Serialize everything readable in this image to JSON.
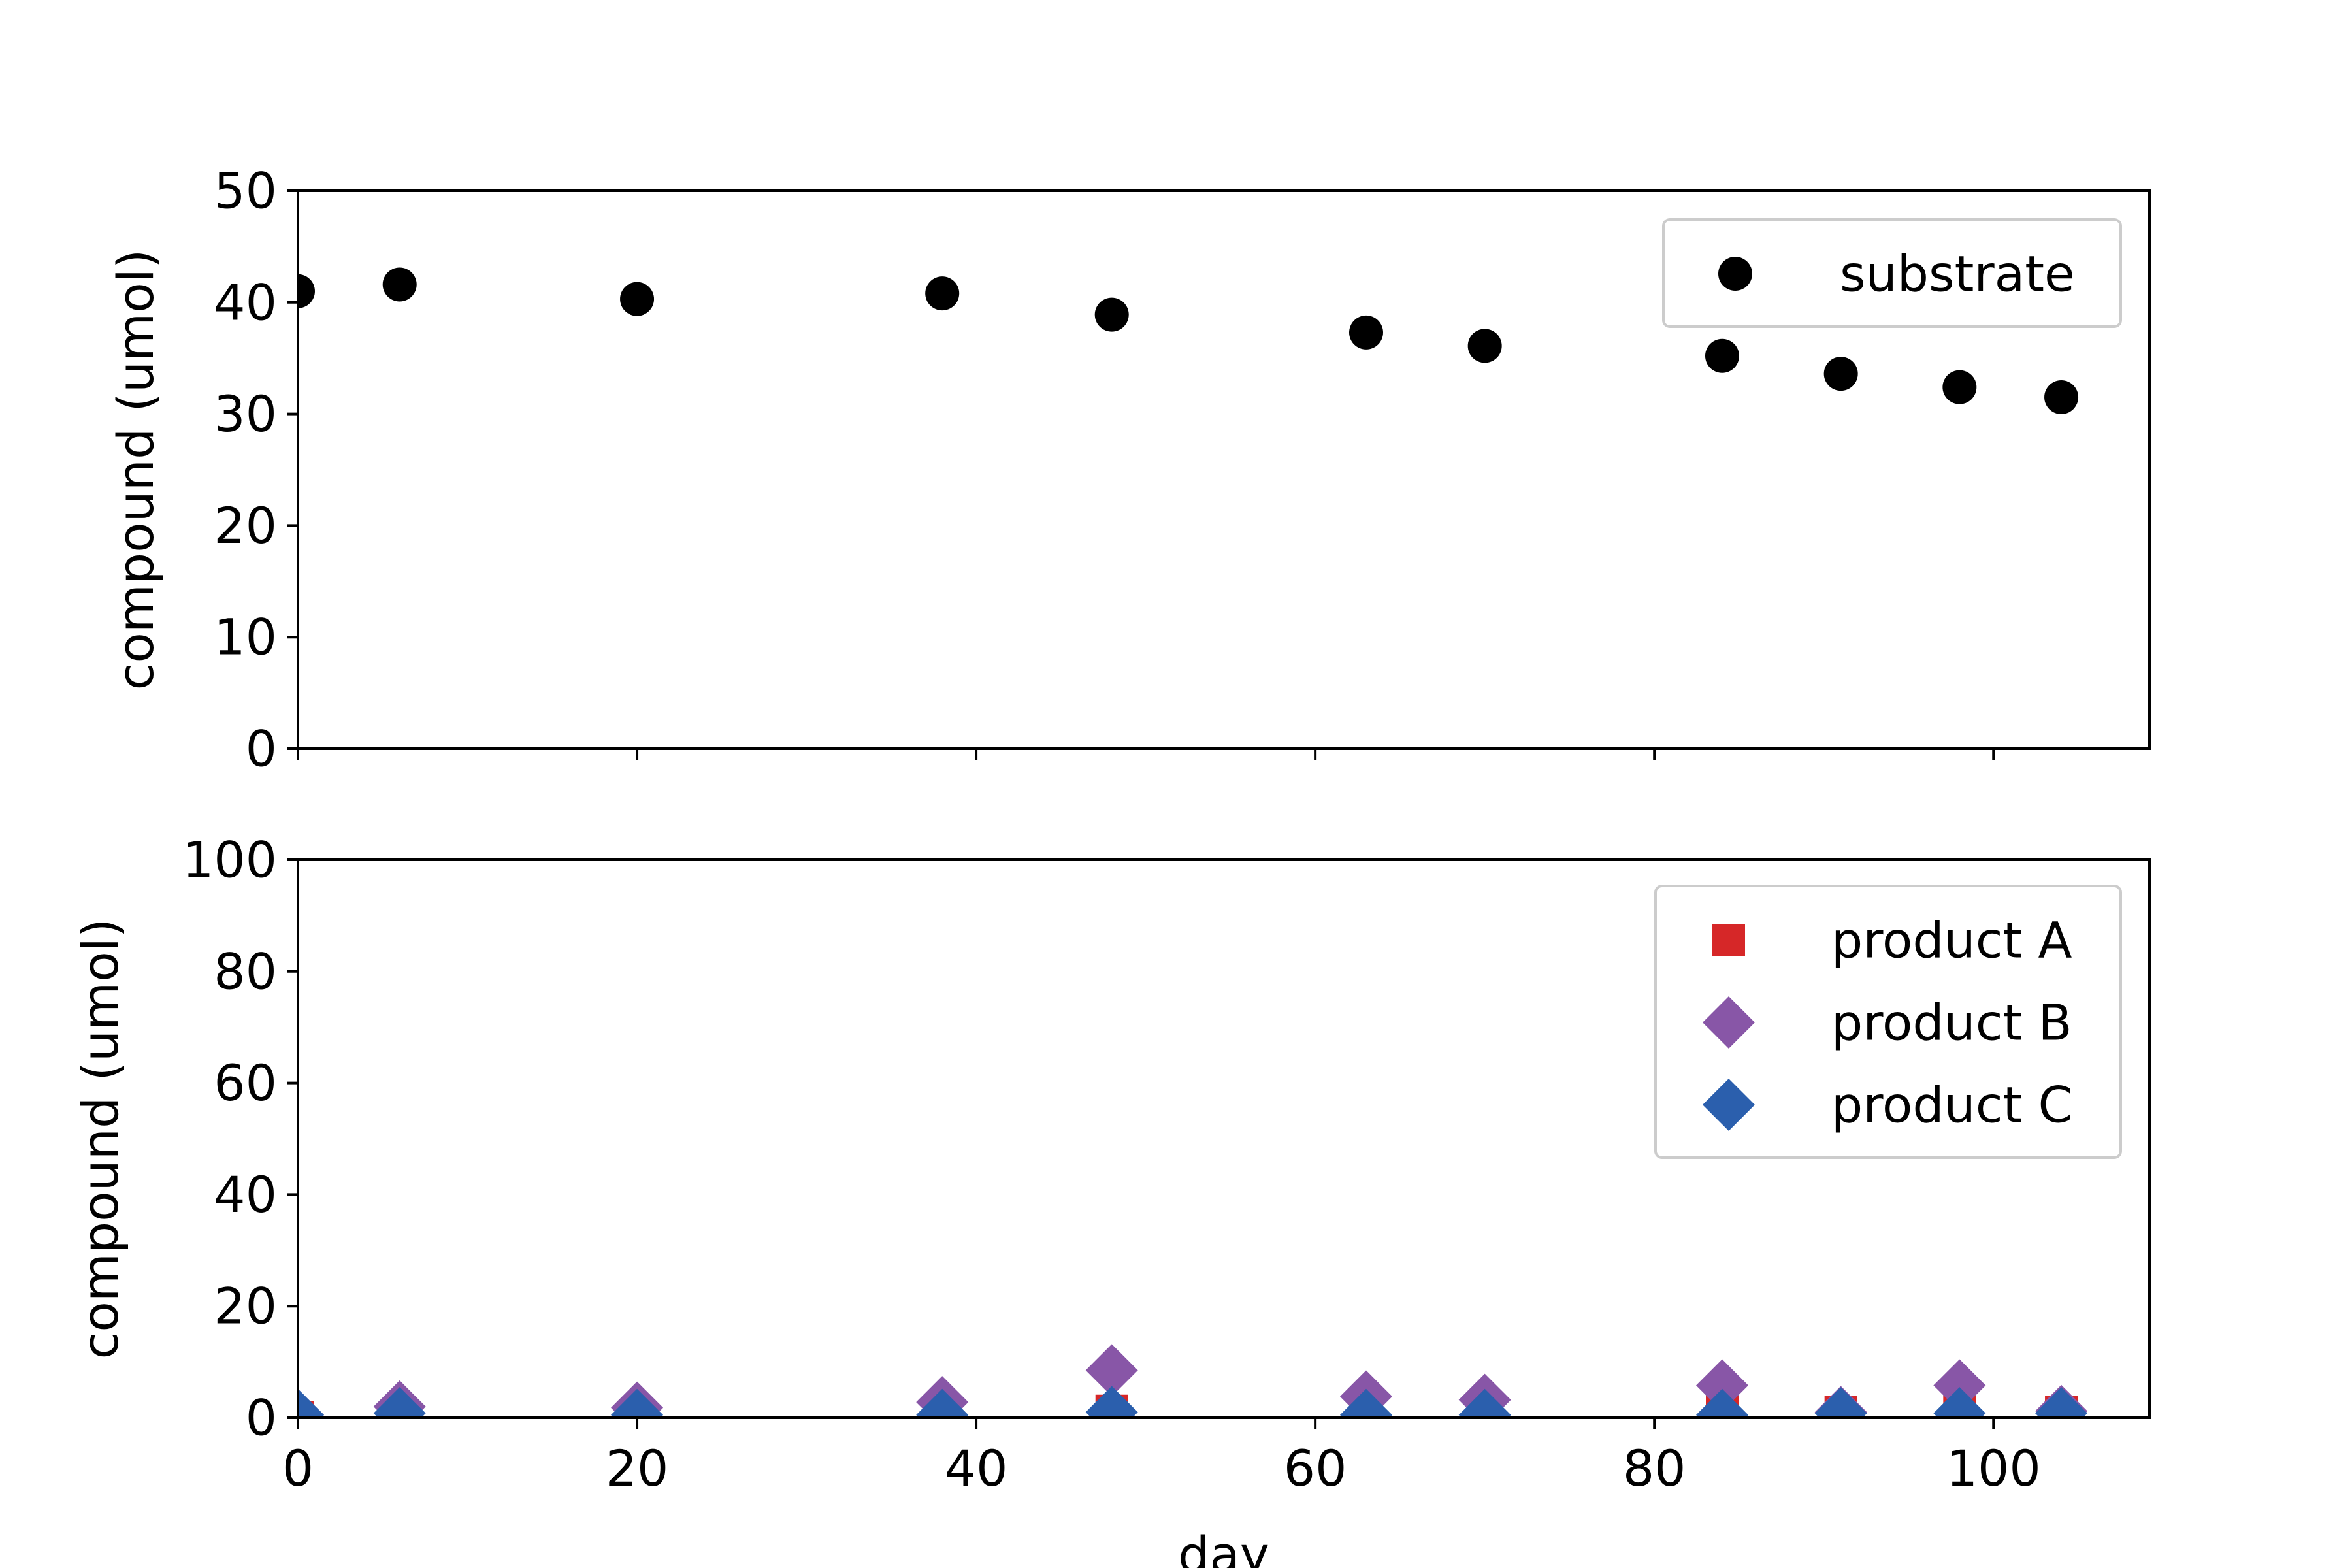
{
  "chart_data": [
    {
      "type": "scatter",
      "xlabel": "",
      "ylabel": "compound (umol)",
      "xlim": [
        0,
        109.2
      ],
      "ylim": [
        0,
        50
      ],
      "yticks": [
        0,
        10,
        20,
        30,
        40,
        50
      ],
      "xticks": [
        0,
        20,
        40,
        60,
        80,
        100
      ],
      "x_ticklabels_visible": false,
      "grid": false,
      "legend_position": "top-right",
      "series": [
        {
          "name": "substrate",
          "marker": "circle",
          "color": "#000000",
          "x": [
            0,
            6,
            20,
            38,
            48,
            63,
            70,
            84,
            91,
            98,
            104
          ],
          "y": [
            41,
            41.6,
            40.3,
            40.8,
            38.9,
            37.3,
            36.1,
            35.2,
            33.6,
            32.4,
            31.5
          ]
        }
      ]
    },
    {
      "type": "scatter",
      "xlabel": "day",
      "ylabel": "compound (umol)",
      "xlim": [
        0,
        109.2
      ],
      "ylim": [
        0,
        100
      ],
      "yticks": [
        0,
        20,
        40,
        60,
        80,
        100
      ],
      "xticks": [
        0,
        20,
        40,
        60,
        80,
        100
      ],
      "grid": false,
      "legend_position": "top-right",
      "series": [
        {
          "name": "product A",
          "marker": "square",
          "color": "#d62728",
          "x": [
            0,
            6,
            20,
            38,
            48,
            63,
            70,
            84,
            91,
            98,
            104
          ],
          "y": [
            0,
            0.5,
            0.3,
            0.5,
            1.2,
            0.8,
            0.5,
            1.5,
            1.0,
            1.5,
            1.0
          ]
        },
        {
          "name": "product B",
          "marker": "diamond",
          "color": "#8856a7",
          "x": [
            0,
            6,
            20,
            38,
            48,
            63,
            70,
            84,
            91,
            98,
            104
          ],
          "y": [
            0.5,
            2.0,
            1.8,
            2.8,
            8.5,
            3.8,
            3.2,
            5.8,
            1.0,
            5.8,
            1.2
          ]
        },
        {
          "name": "product C",
          "marker": "diamond",
          "color": "#2b5fad",
          "x": [
            0,
            6,
            20,
            38,
            48,
            63,
            70,
            84,
            91,
            98,
            104
          ],
          "y": [
            0.5,
            0.8,
            0.5,
            0.5,
            1.0,
            0.5,
            0.5,
            0.5,
            0.8,
            0.8,
            0.8
          ]
        }
      ]
    }
  ]
}
